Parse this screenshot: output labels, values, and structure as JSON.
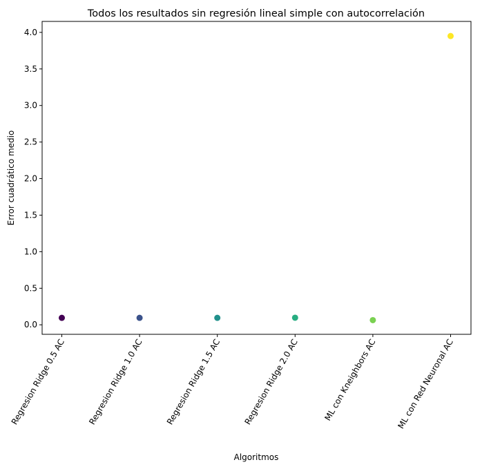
{
  "chart_data": {
    "type": "scatter",
    "title": "Todos los resultados sin regresión lineal simple con autocorrelación",
    "xlabel": "Algoritmos",
    "ylabel": "Error cuadrático medio",
    "categories": [
      "Regresion Ridge 0.5 AC",
      "Regresion Ridge 1.0 AC",
      "Regresion Ridge 1.5 AC",
      "Regresion Ridge 2.0 AC",
      "ML con Kneighbors AC",
      "ML con Red Neuronal AC"
    ],
    "values": [
      0.095,
      0.095,
      0.095,
      0.097,
      0.064,
      3.95
    ],
    "colors": [
      "#440154",
      "#3b528b",
      "#21918c",
      "#27ad81",
      "#7ad151",
      "#fde725"
    ],
    "ylim": [
      -0.13,
      4.15
    ],
    "yticks": [
      0.0,
      0.5,
      1.0,
      1.5,
      2.0,
      2.5,
      3.0,
      3.5,
      4.0
    ],
    "ytick_labels": [
      "0.0",
      "0.5",
      "1.0",
      "1.5",
      "2.0",
      "2.5",
      "3.0",
      "3.5",
      "4.0"
    ],
    "grid": false,
    "legend": "none"
  }
}
